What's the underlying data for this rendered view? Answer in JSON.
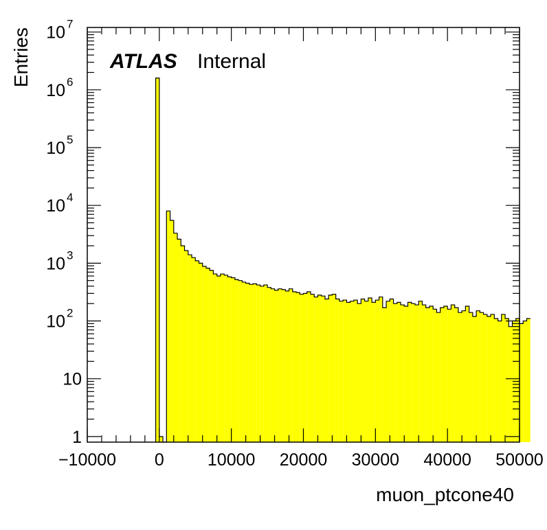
{
  "chart_data": {
    "type": "bar",
    "xlabel": "muon_ptcone40",
    "ylabel": "Entries",
    "xlim": [
      -10000,
      50000
    ],
    "ylim": [
      0.8,
      12000000
    ],
    "yscale": "log",
    "grid": false,
    "fill_color": "#ffff00",
    "edge_color": "#000000",
    "annotation": {
      "experiment": "ATLAS",
      "status": "Internal"
    },
    "x_ticks": [
      {
        "value": -10000,
        "label": "−10000"
      },
      {
        "value": 0,
        "label": "0"
      },
      {
        "value": 10000,
        "label": "10000"
      },
      {
        "value": 20000,
        "label": "20000"
      },
      {
        "value": 30000,
        "label": "30000"
      },
      {
        "value": 40000,
        "label": "40000"
      },
      {
        "value": 50000,
        "label": "50000"
      }
    ],
    "y_ticks": [
      {
        "value": 1,
        "base": "1",
        "exp": ""
      },
      {
        "value": 10,
        "base": "10",
        "exp": ""
      },
      {
        "value": 100,
        "base": "10",
        "exp": "2"
      },
      {
        "value": 1000,
        "base": "10",
        "exp": "3"
      },
      {
        "value": 10000,
        "base": "10",
        "exp": "4"
      },
      {
        "value": 100000,
        "base": "10",
        "exp": "5"
      },
      {
        "value": 1000000,
        "base": "10",
        "exp": "6"
      },
      {
        "value": 10000000,
        "base": "10",
        "exp": "7"
      }
    ],
    "bin_start": -500,
    "bin_width": 500,
    "values": [
      1600000,
      1,
      0,
      8000,
      5500,
      3300,
      2600,
      2000,
      1650,
      1400,
      1250,
      1100,
      1000,
      880,
      820,
      750,
      650,
      600,
      650,
      620,
      580,
      560,
      520,
      500,
      470,
      450,
      430,
      440,
      420,
      400,
      420,
      380,
      360,
      340,
      360,
      350,
      330,
      360,
      320,
      310,
      290,
      300,
      320,
      290,
      260,
      280,
      270,
      240,
      280,
      290,
      240,
      220,
      230,
      210,
      220,
      230,
      200,
      240,
      220,
      250,
      210,
      230,
      260,
      170,
      220,
      240,
      200,
      210,
      190,
      180,
      210,
      200,
      190,
      220,
      190,
      170,
      180,
      160,
      140,
      170,
      180,
      160,
      190,
      170,
      140,
      150,
      180,
      140,
      120,
      150,
      140,
      130,
      120,
      130,
      110,
      100,
      130,
      110,
      80,
      100,
      110,
      90,
      100,
      110
    ]
  }
}
